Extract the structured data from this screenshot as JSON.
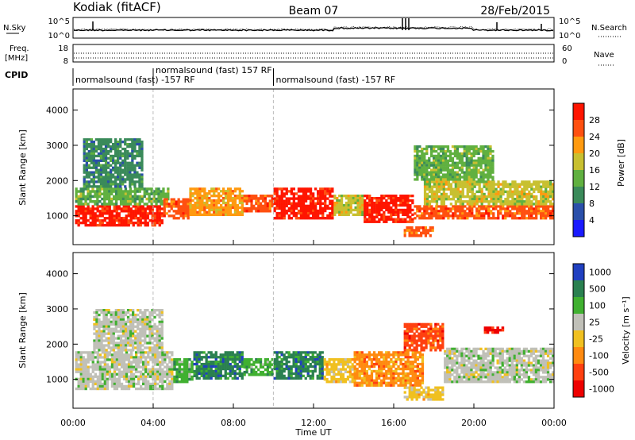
{
  "header": {
    "station": "Kodiak (fitACF)",
    "beam": "Beam 07",
    "date": "28/Feb/2015"
  },
  "strip_noise": {
    "left_label": "N.Sky",
    "right_label": "N.Search",
    "left_ticks": [
      "10^5",
      "10^0"
    ],
    "right_ticks": [
      "10^5",
      "10^0"
    ]
  },
  "strip_freq": {
    "left_label_top": "Freq.",
    "left_label_bottom": "[MHz]",
    "right_label": "Nave",
    "left_ticks": [
      "18",
      "8"
    ],
    "right_ticks": [
      "60",
      "0"
    ]
  },
  "cpid": {
    "label": "CPID",
    "segments": [
      {
        "start_hour": 0.0,
        "end_hour": 4.0,
        "text": "normalsound (fast) -157 RF",
        "row": "low"
      },
      {
        "start_hour": 4.0,
        "end_hour": 10.0,
        "text": "normalsound (fast) 157 RF",
        "row": "high"
      },
      {
        "start_hour": 10.0,
        "end_hour": 24.0,
        "text": "normalsound (fast) -157 RF",
        "row": "low"
      }
    ]
  },
  "axes": {
    "ylabel": "Slant Range [km]",
    "xlabel": "Time UT",
    "y_ticks": [
      "1000",
      "2000",
      "3000",
      "4000"
    ],
    "x_ticks": [
      "00:00",
      "04:00",
      "08:00",
      "12:00",
      "16:00",
      "20:00",
      "00:00"
    ]
  },
  "chart_data": [
    {
      "type": "heatmap",
      "name": "power",
      "xlabel": "Time UT",
      "ylabel": "Slant Range [km]",
      "xlim_hours": [
        0,
        24
      ],
      "ylim_km": [
        180,
        4600
      ],
      "colorbar_label": "Power [dB]",
      "colorbar_ticks": [
        "4",
        "8",
        "12",
        "16",
        "20",
        "24",
        "28"
      ],
      "colorbar_range": [
        0,
        30
      ],
      "colors": [
        "#1a1aff",
        "#2a4faa",
        "#3a8a5a",
        "#60b040",
        "#c8c030",
        "#ff9a10",
        "#ff5010",
        "#ff1500"
      ],
      "regions": [
        {
          "t0": 0.1,
          "t1": 4.5,
          "r0": 700,
          "r1": 1300,
          "level": 7
        },
        {
          "t0": 0.1,
          "t1": 4.8,
          "r0": 1300,
          "r1": 1800,
          "level": 3
        },
        {
          "t0": 0.5,
          "t1": 3.5,
          "r0": 1800,
          "r1": 3200,
          "level": 2
        },
        {
          "t0": 4.5,
          "t1": 5.8,
          "r0": 900,
          "r1": 1500,
          "level": 6
        },
        {
          "t0": 5.8,
          "t1": 8.5,
          "r0": 1000,
          "r1": 1800,
          "level": 5
        },
        {
          "t0": 8.5,
          "t1": 10.0,
          "r0": 1100,
          "r1": 1600,
          "level": 6
        },
        {
          "t0": 10.0,
          "t1": 13.0,
          "r0": 900,
          "r1": 1800,
          "level": 7
        },
        {
          "t0": 13.0,
          "t1": 14.5,
          "r0": 1000,
          "r1": 1600,
          "level": 4
        },
        {
          "t0": 14.5,
          "t1": 17.0,
          "r0": 800,
          "r1": 1600,
          "level": 7
        },
        {
          "t0": 16.5,
          "t1": 18.0,
          "r0": 400,
          "r1": 700,
          "level": 6
        },
        {
          "t0": 17.0,
          "t1": 24.0,
          "r0": 900,
          "r1": 1300,
          "level": 6
        },
        {
          "t0": 17.5,
          "t1": 24.0,
          "r0": 1300,
          "r1": 2000,
          "level": 4
        },
        {
          "t0": 17.0,
          "t1": 21.0,
          "r0": 2000,
          "r1": 3000,
          "level": 3
        }
      ]
    },
    {
      "type": "heatmap",
      "name": "velocity",
      "xlabel": "Time UT",
      "ylabel": "Slant Range [km]",
      "xlim_hours": [
        0,
        24
      ],
      "ylim_km": [
        180,
        4600
      ],
      "colorbar_label": "Velocity [m s⁻¹]",
      "colorbar_ticks": [
        "1000",
        "500",
        "100",
        "25",
        "-25",
        "-100",
        "-500",
        "-1000"
      ],
      "colors": [
        "#2040c0",
        "#2a8050",
        "#40b030",
        "#c0c0b8",
        "#f0c020",
        "#ff8a10",
        "#ff4010",
        "#ee0000"
      ],
      "regions": [
        {
          "t0": 0.1,
          "t1": 5.0,
          "r0": 700,
          "r1": 1800,
          "level": 3
        },
        {
          "t0": 1.0,
          "t1": 4.5,
          "r0": 1800,
          "r1": 3000,
          "level": 3
        },
        {
          "t0": 5.0,
          "t1": 6.0,
          "r0": 900,
          "r1": 1600,
          "level": 2
        },
        {
          "t0": 6.0,
          "t1": 8.5,
          "r0": 1000,
          "r1": 1800,
          "level": 1
        },
        {
          "t0": 8.5,
          "t1": 10.0,
          "r0": 1100,
          "r1": 1600,
          "level": 2
        },
        {
          "t0": 10.0,
          "t1": 12.5,
          "r0": 1000,
          "r1": 1800,
          "level": 1
        },
        {
          "t0": 12.5,
          "t1": 14.0,
          "r0": 900,
          "r1": 1600,
          "level": 4
        },
        {
          "t0": 14.0,
          "t1": 17.5,
          "r0": 800,
          "r1": 1800,
          "level": 5
        },
        {
          "t0": 16.5,
          "t1": 18.5,
          "r0": 1800,
          "r1": 2600,
          "level": 6
        },
        {
          "t0": 16.5,
          "t1": 18.5,
          "r0": 400,
          "r1": 800,
          "level": 4
        },
        {
          "t0": 18.5,
          "t1": 24.0,
          "r0": 900,
          "r1": 1900,
          "level": 3
        },
        {
          "t0": 20.5,
          "t1": 21.5,
          "r0": 2300,
          "r1": 2500,
          "level": 7
        }
      ]
    }
  ]
}
